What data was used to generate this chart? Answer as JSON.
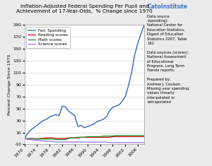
{
  "title": "Inflation-Adjusted Federal Spending Per Pupil and\nAchievement of 17-Year-Olds,  % Change since 1970",
  "ylabel": "Percent Change Since 1970",
  "years": [
    1970,
    1971,
    1972,
    1973,
    1974,
    1975,
    1976,
    1977,
    1978,
    1979,
    1980,
    1981,
    1982,
    1983,
    1984,
    1985,
    1986,
    1987,
    1988,
    1989,
    1990,
    1991,
    1992,
    1993,
    1994,
    1995,
    1996,
    1997,
    1998,
    1999,
    2000,
    2001,
    2002,
    2003,
    2004,
    2005,
    2006,
    2007,
    2008
  ],
  "fed_spending": [
    0,
    8,
    14,
    18,
    22,
    26,
    30,
    32,
    36,
    38,
    40,
    38,
    54,
    53,
    46,
    42,
    38,
    20,
    22,
    18,
    20,
    22,
    24,
    28,
    30,
    32,
    36,
    46,
    52,
    54,
    56,
    62,
    70,
    88,
    110,
    140,
    160,
    175,
    190
  ],
  "reading": [
    0,
    -1,
    -1,
    0,
    -1,
    0,
    0,
    1,
    1,
    1,
    0,
    0,
    0,
    0,
    1,
    1,
    1,
    1,
    2,
    2,
    2,
    2,
    2,
    2,
    2,
    2,
    2,
    2,
    3,
    3,
    3,
    3,
    3,
    3,
    3,
    3,
    3,
    3,
    3
  ],
  "math": [
    0,
    0,
    0,
    -1,
    -1,
    -1,
    -1,
    -1,
    -1,
    -1,
    -2,
    -2,
    -2,
    -2,
    0,
    1,
    1,
    2,
    2,
    2,
    3,
    3,
    3,
    3,
    3,
    4,
    4,
    4,
    4,
    5,
    5,
    5,
    5,
    5,
    5,
    5,
    5,
    5,
    5
  ],
  "science": [
    0,
    -1,
    -2,
    -3,
    -3,
    -4,
    -4,
    -5,
    -5,
    -5,
    -6,
    -6,
    -6,
    -6,
    -6,
    -6,
    -6,
    -6,
    -6,
    -6,
    -6,
    -6,
    -6,
    -6,
    -6,
    -6,
    -6,
    -7,
    -7,
    -7,
    -7,
    -7,
    -7,
    -7,
    -7,
    -7,
    -7,
    -7,
    -7
  ],
  "fed_color": "#4472C4",
  "reading_color": "#CC0000",
  "math_color": "#228B22",
  "science_color": "#9370DB",
  "ylim": [
    -10,
    190
  ],
  "yticks": [
    -10,
    10,
    30,
    50,
    70,
    90,
    110,
    130,
    150,
    170,
    190
  ],
  "xtick_years": [
    1970,
    1974,
    1978,
    1982,
    1986,
    1990,
    1994,
    1998,
    2002,
    2006
  ],
  "cato_color": "#4472C4",
  "bg_color": "#EBEBEB",
  "plot_bg": "#FFFFFF",
  "cato_label": "CatoInstitute",
  "annotation_body": "Data source\n(spending):\nNational Center for\nEducation Statistics,\nDigest of Education\nStatistics 2007, Table\n162\n\nData sources (scores):\nNational Assessment\nof Educational\nProgress, Long Term\nTrends reports.\n\nPrepared by:\nAndrew J. Coulson.\nMissing year spending\nvalues linearly\ninterpolated or\nextrapolated"
}
